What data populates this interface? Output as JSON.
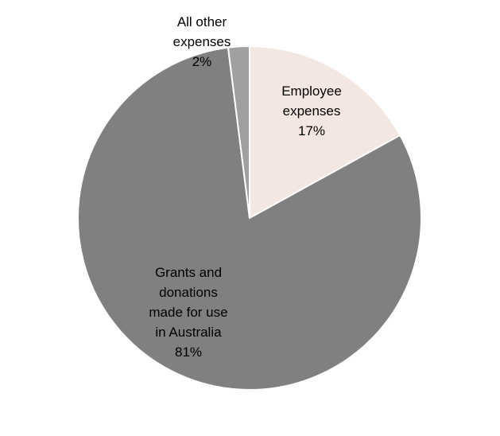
{
  "chart_data": {
    "type": "pie",
    "title": "",
    "slices": [
      {
        "label_lines": [
          "Employee",
          "expenses",
          "17%"
        ],
        "value": 17,
        "color": "#f4e6e1"
      },
      {
        "label_lines": [
          "Grants and",
          "donations",
          "made for use",
          "in Australia",
          "81%"
        ],
        "value": 81,
        "color": "#808080"
      },
      {
        "label_lines": [
          "All other",
          "expenses",
          "2%"
        ],
        "value": 2,
        "color": "#a0a0a0"
      }
    ],
    "start_angle": "12 o'clock",
    "direction": "clockwise",
    "legend": "none",
    "label_placement": "data labels on slices"
  }
}
